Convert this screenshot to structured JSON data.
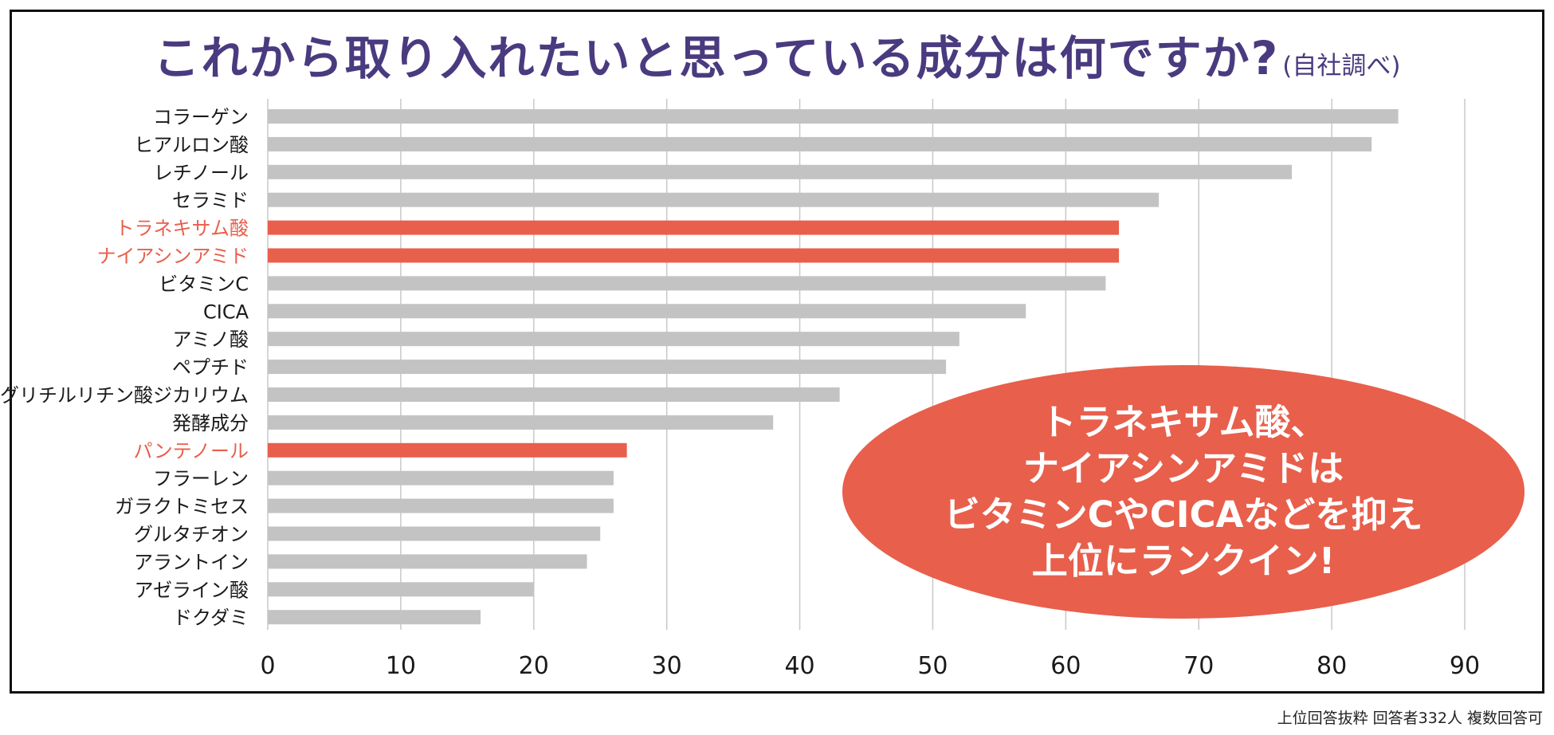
{
  "chart_data": {
    "type": "bar",
    "orientation": "horizontal",
    "title": "これから取り入れたいと思っている成分は何ですか?",
    "subtitle": "(自社調べ)",
    "categories": [
      "コラーゲン",
      "ヒアルロン酸",
      "レチノール",
      "セラミド",
      "トラネキサム酸",
      "ナイアシンアミド",
      "ビタミンC",
      "CICA",
      "アミノ酸",
      "ペプチド",
      "グリチルリチン酸ジカリウム",
      "発酵成分",
      "パンテノール",
      "フラーレン",
      "ガラクトミセス",
      "グルタチオン",
      "アラントイン",
      "アゼライン酸",
      "ドクダミ"
    ],
    "values": [
      85,
      83,
      77,
      67,
      64,
      64,
      63,
      57,
      52,
      51,
      43,
      38,
      27,
      26,
      26,
      25,
      24,
      20,
      16
    ],
    "highlighted": [
      "トラネキサム酸",
      "ナイアシンアミド",
      "パンテノール"
    ],
    "xlim": [
      0,
      90
    ],
    "xticks": [
      0,
      10,
      20,
      30,
      40,
      50,
      60,
      70,
      80,
      90
    ],
    "grid": true,
    "xlabel": "",
    "ylabel": "",
    "colors": {
      "bar": "#c3c3c3",
      "highlight": "#e85f4c",
      "title": "#4a3a7f",
      "grid": "#c8c8c8",
      "text": "#1a1a1a"
    }
  },
  "callout": {
    "lines": [
      "トラネキサム酸、",
      "ナイアシンアミドは",
      "ビタミンCやCICAなどを抑え",
      "上位にランクイン!"
    ],
    "color": "#e85f4c"
  },
  "footnote": "上位回答抜粋  回答者332人  複数回答可"
}
